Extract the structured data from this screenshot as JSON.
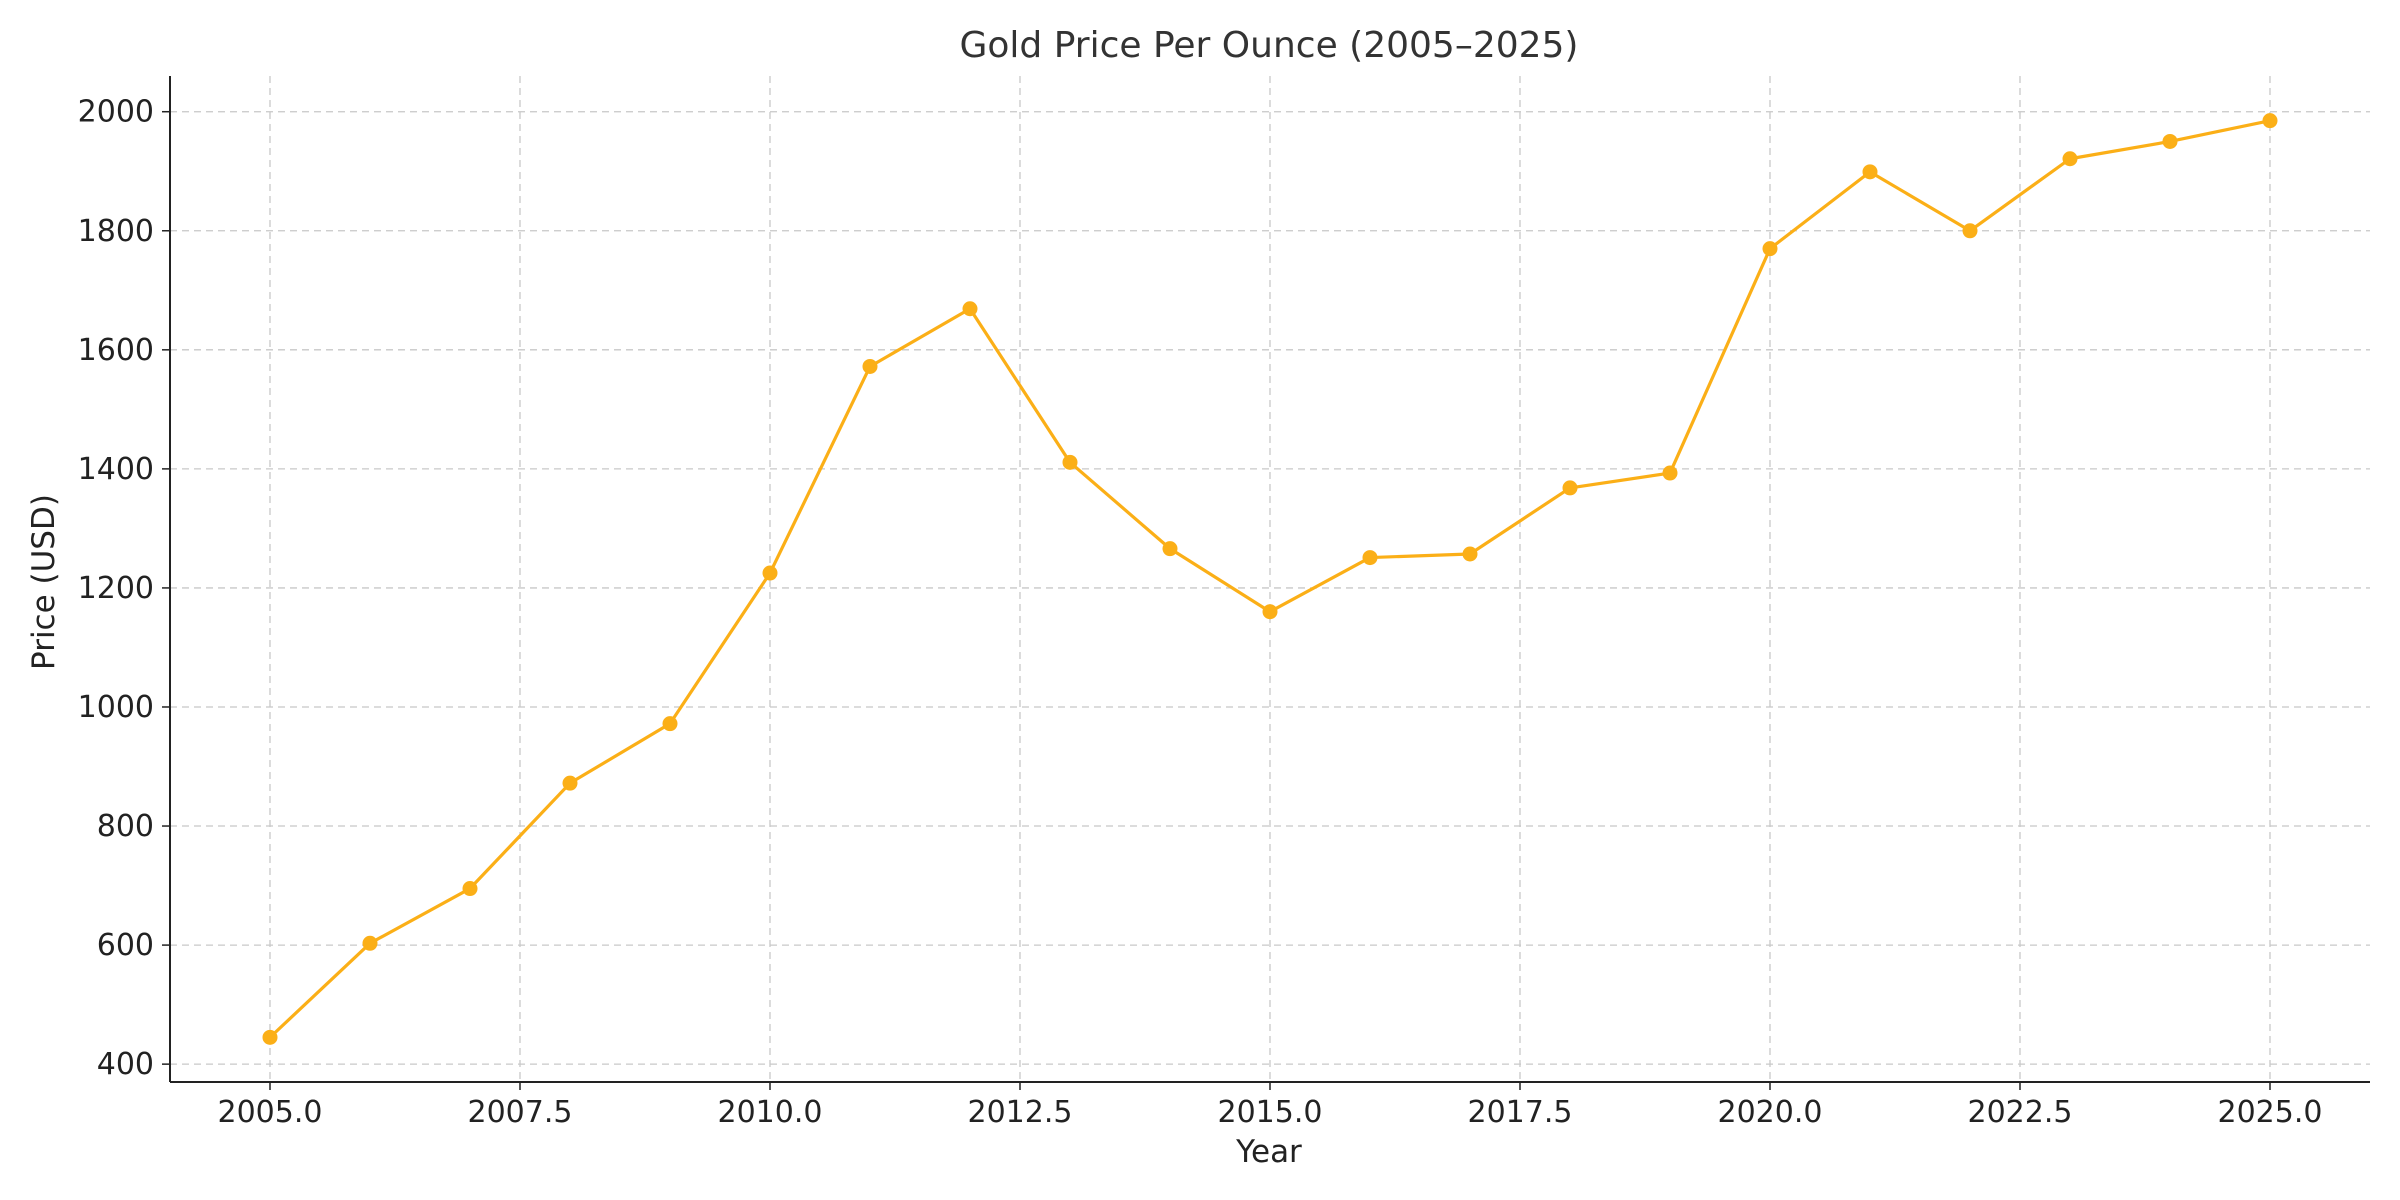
{
  "chart_data": {
    "type": "line",
    "title": "Gold Price Per Ounce (2005–2025)",
    "xlabel": "Year",
    "ylabel": "Price (USD)",
    "xlim": [
      2004.0,
      2026.0
    ],
    "ylim": [
      370,
      2060
    ],
    "xticks": [
      2005.0,
      2007.5,
      2010.0,
      2012.5,
      2015.0,
      2017.5,
      2020.0,
      2022.5,
      2025.0
    ],
    "xtick_labels": [
      "2005.0",
      "2007.5",
      "2010.0",
      "2012.5",
      "2015.0",
      "2017.5",
      "2020.0",
      "2022.5",
      "2025.0"
    ],
    "yticks": [
      400,
      600,
      800,
      1000,
      1200,
      1400,
      1600,
      1800,
      2000
    ],
    "ytick_labels": [
      "400",
      "600",
      "800",
      "1000",
      "1200",
      "1400",
      "1600",
      "1800",
      "2000"
    ],
    "grid": true,
    "legend": "none",
    "x": [
      2005,
      2006,
      2007,
      2008,
      2009,
      2010,
      2011,
      2012,
      2013,
      2014,
      2015,
      2016,
      2017,
      2018,
      2019,
      2020,
      2021,
      2022,
      2023,
      2024,
      2025
    ],
    "series": [
      {
        "color": "#FBAF17",
        "values": [
          445,
          603,
          695,
          872,
          972,
          1225,
          1572,
          1669,
          1411,
          1266,
          1160,
          1251,
          1257,
          1368,
          1393,
          1770,
          1899,
          1800,
          1921,
          1950,
          1985
        ]
      }
    ]
  }
}
